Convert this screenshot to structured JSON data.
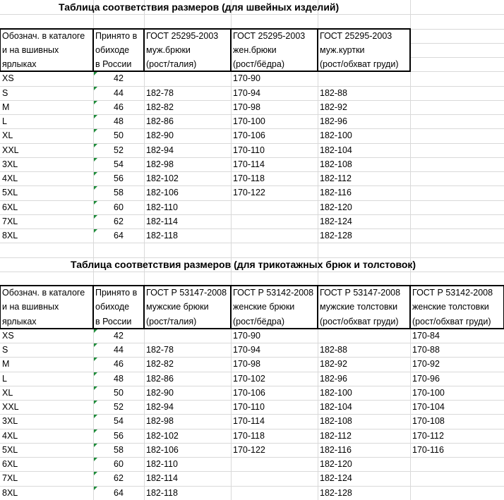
{
  "tables": [
    {
      "title": "Таблица соответствия размеров (для швейных изделий)",
      "headers": [
        [
          "Обознач. в каталоге",
          "и на вшивных",
          "ярлыках"
        ],
        [
          "Принято в",
          "обиходе",
          "в России"
        ],
        [
          "ГОСТ 25295-2003",
          "муж.брюки",
          "(рост/талия)"
        ],
        [
          "ГОСТ 25295-2003",
          "жен.брюки",
          "(рост/бёдра)"
        ],
        [
          "ГОСТ 25295-2003",
          "муж.куртки",
          "(рост/обхват груди)"
        ]
      ],
      "rows": [
        [
          "XS",
          "42",
          null,
          "170-90",
          null
        ],
        [
          "S",
          "44",
          "182-78",
          "170-94",
          "182-88"
        ],
        [
          "M",
          "46",
          "182-82",
          "170-98",
          "182-92"
        ],
        [
          "L",
          "48",
          "182-86",
          "170-100",
          "182-96"
        ],
        [
          "XL",
          "50",
          "182-90",
          "170-106",
          "182-100"
        ],
        [
          "XXL",
          "52",
          "182-94",
          "170-110",
          "182-104"
        ],
        [
          "3XL",
          "54",
          "182-98",
          "170-114",
          "182-108"
        ],
        [
          "4XL",
          "56",
          "182-102",
          "170-118",
          "182-112"
        ],
        [
          "5XL",
          "58",
          "182-106",
          "170-122",
          "182-116"
        ],
        [
          "6XL",
          "60",
          "182-110",
          null,
          "182-120"
        ],
        [
          "7XL",
          "62",
          "182-114",
          null,
          "182-124"
        ],
        [
          "8XL",
          "64",
          "182-118",
          null,
          "182-128"
        ]
      ]
    },
    {
      "title": "Таблица соответствия размеров (для трикотажных брюк и толстовок)",
      "headers": [
        [
          "Обознач. в каталоге",
          "и на вшивных",
          "ярлыках"
        ],
        [
          "Принято в",
          "обиходе",
          "в России"
        ],
        [
          "ГОСТ Р 53147-2008",
          "мужские брюки",
          "(рост/талия)"
        ],
        [
          "ГОСТ Р 53142-2008",
          "женские брюки",
          "(рост/бёдра)"
        ],
        [
          "ГОСТ Р 53147-2008",
          "мужские толстовки",
          "(рост/обхват груди)"
        ],
        [
          "ГОСТ Р 53142-2008",
          "женские толстовки",
          "(рост/обхват груди)"
        ]
      ],
      "rows": [
        [
          "XS",
          "42",
          null,
          "170-90",
          null,
          "170-84"
        ],
        [
          "S",
          "44",
          "182-78",
          "170-94",
          "182-88",
          "170-88"
        ],
        [
          "M",
          "46",
          "182-82",
          "170-98",
          "182-92",
          "170-92"
        ],
        [
          "L",
          "48",
          "182-86",
          "170-102",
          "182-96",
          "170-96"
        ],
        [
          "XL",
          "50",
          "182-90",
          "170-106",
          "182-100",
          "170-100"
        ],
        [
          "XXL",
          "52",
          "182-94",
          "170-110",
          "182-104",
          "170-104"
        ],
        [
          "3XL",
          "54",
          "182-98",
          "170-114",
          "182-108",
          "170-108"
        ],
        [
          "4XL",
          "56",
          "182-102",
          "170-118",
          "182-112",
          "170-112"
        ],
        [
          "5XL",
          "58",
          "182-106",
          "170-122",
          "182-116",
          "170-116"
        ],
        [
          "6XL",
          "60",
          "182-110",
          null,
          "182-120",
          null
        ],
        [
          "7XL",
          "62",
          "182-114",
          null,
          "182-124",
          null
        ],
        [
          "8XL",
          "64",
          "182-118",
          null,
          "182-128",
          null
        ]
      ]
    }
  ]
}
